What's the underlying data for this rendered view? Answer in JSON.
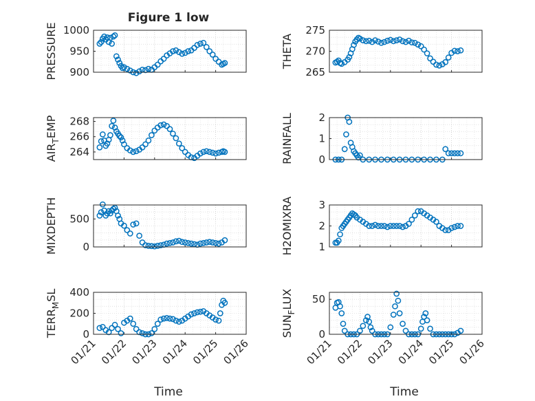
{
  "figure": {
    "title": "Figure 1 low",
    "marker_color": "#0072bd"
  },
  "chart_data": [
    {
      "type": "scatter",
      "panel": "PRESSURE",
      "ylabel": "PRESSURE",
      "ylim": [
        900,
        1000
      ],
      "yticks": [
        "1000",
        "950",
        "900"
      ],
      "xlim": [
        0,
        5
      ],
      "xticks": [
        "01/21",
        "01/22",
        "01/23",
        "01/24",
        "01/25",
        "01/26"
      ],
      "x": [
        0.2,
        0.25,
        0.3,
        0.35,
        0.4,
        0.45,
        0.5,
        0.55,
        0.6,
        0.65,
        0.7,
        0.75,
        0.8,
        0.85,
        0.9,
        0.95,
        1.0,
        1.1,
        1.2,
        1.3,
        1.4,
        1.5,
        1.6,
        1.7,
        1.8,
        1.9,
        2.0,
        2.1,
        2.2,
        2.3,
        2.4,
        2.5,
        2.6,
        2.7,
        2.8,
        2.9,
        3.0,
        3.1,
        3.2,
        3.3,
        3.4,
        3.5,
        3.6,
        3.7,
        3.8,
        3.9,
        4.0,
        4.1,
        4.2,
        4.25,
        4.3
      ],
      "y": [
        968,
        972,
        980,
        985,
        978,
        983,
        972,
        982,
        968,
        985,
        988,
        938,
        930,
        922,
        915,
        910,
        912,
        908,
        904,
        900,
        898,
        902,
        906,
        905,
        908,
        906,
        912,
        918,
        926,
        932,
        940,
        945,
        950,
        952,
        948,
        944,
        946,
        950,
        952,
        958,
        965,
        968,
        970,
        960,
        950,
        942,
        932,
        925,
        918,
        920,
        922
      ]
    },
    {
      "type": "scatter",
      "panel": "THETA",
      "ylabel": "THETA",
      "ylim": [
        265,
        275
      ],
      "yticks": [
        "275",
        "270",
        "265"
      ],
      "xlim": [
        0,
        5
      ],
      "xticks": [
        "01/21",
        "01/22",
        "01/23",
        "01/24",
        "01/25",
        "01/26"
      ],
      "x": [
        0.2,
        0.25,
        0.3,
        0.35,
        0.4,
        0.5,
        0.6,
        0.65,
        0.7,
        0.75,
        0.8,
        0.85,
        0.9,
        0.95,
        1.0,
        1.1,
        1.2,
        1.3,
        1.4,
        1.5,
        1.6,
        1.7,
        1.8,
        1.9,
        2.0,
        2.1,
        2.2,
        2.3,
        2.4,
        2.5,
        2.6,
        2.7,
        2.8,
        2.9,
        3.0,
        3.1,
        3.2,
        3.3,
        3.4,
        3.5,
        3.6,
        3.7,
        3.8,
        3.9,
        4.0,
        4.1,
        4.2,
        4.3
      ],
      "y": [
        267.3,
        267.5,
        267.8,
        267.2,
        267.0,
        267.4,
        268.0,
        268.6,
        269.5,
        270.5,
        271.5,
        272.3,
        272.8,
        273.2,
        273.0,
        272.6,
        272.4,
        272.5,
        272.2,
        272.6,
        272.3,
        272.0,
        272.2,
        272.5,
        272.7,
        272.4,
        272.6,
        272.8,
        272.4,
        272.2,
        272.5,
        272.1,
        272.0,
        271.6,
        271.2,
        270.4,
        269.5,
        268.3,
        267.5,
        266.8,
        266.6,
        266.9,
        267.4,
        268.5,
        269.6,
        270.1,
        270.0,
        270.2
      ]
    },
    {
      "type": "scatter",
      "panel": "AIR_TEMP",
      "ylabel": "AIR",
      "ylabel_sub": "T",
      "ylabel_rest": "EMP",
      "ylim": [
        263,
        268.5
      ],
      "yticks": [
        "268",
        "266",
        "264"
      ],
      "xlim": [
        0,
        5
      ],
      "xticks": [
        "01/21",
        "01/22",
        "01/23",
        "01/24",
        "01/25",
        "01/26"
      ],
      "x": [
        0.2,
        0.25,
        0.3,
        0.35,
        0.4,
        0.45,
        0.5,
        0.55,
        0.6,
        0.65,
        0.7,
        0.75,
        0.8,
        0.85,
        0.9,
        0.95,
        1.0,
        1.1,
        1.2,
        1.3,
        1.4,
        1.5,
        1.6,
        1.7,
        1.8,
        1.9,
        2.0,
        2.1,
        2.2,
        2.3,
        2.4,
        2.5,
        2.6,
        2.7,
        2.8,
        2.9,
        3.0,
        3.1,
        3.2,
        3.3,
        3.4,
        3.5,
        3.6,
        3.7,
        3.8,
        3.9,
        4.0,
        4.1,
        4.2,
        4.25,
        4.3
      ],
      "y": [
        264.6,
        265.4,
        266.3,
        265.5,
        264.8,
        265.1,
        265.6,
        266.2,
        267.4,
        268.1,
        267.2,
        266.7,
        266.4,
        266.1,
        265.9,
        265.5,
        265.0,
        264.5,
        264.2,
        264.0,
        264.1,
        264.3,
        264.6,
        265.0,
        265.5,
        266.2,
        266.8,
        267.2,
        267.5,
        267.6,
        267.4,
        267.0,
        266.4,
        265.8,
        265.1,
        264.5,
        264.0,
        263.6,
        263.3,
        263.2,
        263.5,
        263.8,
        264.0,
        264.1,
        264.0,
        263.9,
        263.8,
        263.9,
        264.0,
        264.1,
        264.0
      ]
    },
    {
      "type": "scatter",
      "panel": "RAINFALL",
      "ylabel": "RAINFALL",
      "ylim": [
        0,
        2
      ],
      "yticks": [
        "2",
        "1",
        "0"
      ],
      "xlim": [
        0,
        5
      ],
      "xticks": [
        "01/21",
        "01/22",
        "01/23",
        "01/24",
        "01/25",
        "01/26"
      ],
      "x": [
        0.2,
        0.3,
        0.4,
        0.5,
        0.55,
        0.6,
        0.65,
        0.7,
        0.75,
        0.8,
        0.85,
        0.9,
        0.95,
        1.0,
        1.1,
        1.3,
        1.5,
        1.7,
        1.9,
        2.1,
        2.3,
        2.5,
        2.7,
        2.9,
        3.1,
        3.3,
        3.5,
        3.7,
        3.8,
        3.9,
        4.0,
        4.1,
        4.2,
        4.3
      ],
      "y": [
        0,
        0,
        0,
        0.5,
        1.2,
        2.0,
        1.8,
        0.8,
        0.6,
        0.4,
        0.3,
        0.2,
        0.1,
        0.2,
        0,
        0,
        0,
        0,
        0,
        0,
        0,
        0,
        0,
        0,
        0,
        0,
        0,
        0,
        0.5,
        0.3,
        0.3,
        0.3,
        0.3,
        0.3
      ]
    },
    {
      "type": "scatter",
      "panel": "MIXDEPTH",
      "ylabel": "MIXDEPTH",
      "ylim": [
        0,
        750
      ],
      "yticks": [
        "500",
        "0"
      ],
      "xlim": [
        0,
        5
      ],
      "xticks": [
        "01/21",
        "01/22",
        "01/23",
        "01/24",
        "01/25",
        "01/26"
      ],
      "x": [
        0.2,
        0.25,
        0.3,
        0.35,
        0.4,
        0.45,
        0.5,
        0.55,
        0.6,
        0.65,
        0.7,
        0.75,
        0.8,
        0.85,
        0.9,
        1.0,
        1.1,
        1.2,
        1.3,
        1.4,
        1.5,
        1.6,
        1.7,
        1.8,
        1.9,
        2.0,
        2.1,
        2.2,
        2.3,
        2.4,
        2.5,
        2.6,
        2.7,
        2.8,
        2.9,
        3.0,
        3.1,
        3.2,
        3.3,
        3.4,
        3.5,
        3.6,
        3.7,
        3.8,
        3.9,
        4.0,
        4.1,
        4.2,
        4.3
      ],
      "y": [
        560,
        620,
        760,
        650,
        560,
        600,
        640,
        600,
        650,
        680,
        700,
        640,
        560,
        500,
        420,
        380,
        300,
        240,
        400,
        420,
        200,
        80,
        30,
        20,
        15,
        10,
        20,
        30,
        40,
        60,
        70,
        80,
        100,
        110,
        90,
        80,
        70,
        60,
        50,
        40,
        60,
        70,
        80,
        90,
        80,
        70,
        60,
        80,
        120
      ]
    },
    {
      "type": "scatter",
      "panel": "H2OMIXRA",
      "ylabel": "H2OMIXRA",
      "ylim": [
        1,
        3
      ],
      "yticks": [
        "3",
        "2",
        "1"
      ],
      "xlim": [
        0,
        5
      ],
      "xticks": [
        "01/21",
        "01/22",
        "01/23",
        "01/24",
        "01/25",
        "01/26"
      ],
      "x": [
        0.2,
        0.25,
        0.3,
        0.35,
        0.4,
        0.45,
        0.5,
        0.55,
        0.6,
        0.65,
        0.7,
        0.75,
        0.8,
        0.85,
        0.9,
        1.0,
        1.1,
        1.2,
        1.3,
        1.4,
        1.5,
        1.6,
        1.7,
        1.8,
        1.9,
        2.0,
        2.1,
        2.2,
        2.3,
        2.4,
        2.5,
        2.6,
        2.7,
        2.8,
        2.9,
        3.0,
        3.1,
        3.2,
        3.3,
        3.4,
        3.5,
        3.6,
        3.7,
        3.8,
        3.9,
        4.0,
        4.1,
        4.2,
        4.3
      ],
      "y": [
        1.2,
        1.2,
        1.3,
        1.6,
        1.9,
        2.0,
        2.1,
        2.2,
        2.3,
        2.4,
        2.5,
        2.6,
        2.55,
        2.5,
        2.4,
        2.3,
        2.2,
        2.1,
        2.0,
        2.0,
        2.05,
        2.0,
        2.0,
        2.0,
        1.95,
        2.0,
        2.0,
        2.0,
        2.0,
        1.95,
        2.0,
        2.1,
        2.3,
        2.5,
        2.7,
        2.7,
        2.6,
        2.5,
        2.4,
        2.3,
        2.2,
        2.0,
        1.9,
        1.8,
        1.8,
        1.9,
        1.95,
        2.0,
        2.0
      ]
    },
    {
      "type": "scatter",
      "panel": "TERR_MSL",
      "ylabel": "TERR",
      "ylabel_sub": "M",
      "ylabel_rest": "SL",
      "ylim": [
        0,
        400
      ],
      "yticks": [
        "400",
        "200",
        "0"
      ],
      "xlim": [
        0,
        5
      ],
      "xticks": [
        "01/21",
        "01/22",
        "01/23",
        "01/24",
        "01/25",
        "01/26"
      ],
      "x": [
        0.2,
        0.3,
        0.4,
        0.5,
        0.6,
        0.7,
        0.8,
        0.9,
        1.0,
        1.1,
        1.2,
        1.3,
        1.4,
        1.5,
        1.6,
        1.7,
        1.8,
        1.9,
        2.0,
        2.1,
        2.2,
        2.3,
        2.4,
        2.5,
        2.6,
        2.7,
        2.8,
        2.9,
        3.0,
        3.1,
        3.2,
        3.3,
        3.4,
        3.5,
        3.6,
        3.7,
        3.8,
        3.9,
        4.0,
        4.1,
        4.15,
        4.2,
        4.25,
        4.3
      ],
      "y": [
        60,
        70,
        40,
        20,
        60,
        90,
        50,
        10,
        110,
        130,
        150,
        100,
        50,
        20,
        10,
        0,
        0,
        10,
        50,
        100,
        140,
        150,
        155,
        150,
        145,
        130,
        120,
        130,
        150,
        170,
        190,
        200,
        210,
        215,
        220,
        200,
        180,
        160,
        140,
        130,
        200,
        280,
        320,
        300
      ]
    },
    {
      "type": "scatter",
      "panel": "SUN_FLUX",
      "ylabel": "SUN",
      "ylabel_sub": "F",
      "ylabel_rest": "LUX",
      "ylim": [
        0,
        60
      ],
      "yticks": [
        "50",
        "0"
      ],
      "xlim": [
        0,
        5
      ],
      "xticks": [
        "01/21",
        "01/22",
        "01/23",
        "01/24",
        "01/25",
        "01/26"
      ],
      "x": [
        0.2,
        0.25,
        0.3,
        0.35,
        0.4,
        0.45,
        0.5,
        0.6,
        0.7,
        0.8,
        0.9,
        1.0,
        1.1,
        1.2,
        1.25,
        1.3,
        1.35,
        1.4,
        1.5,
        1.6,
        1.7,
        1.8,
        1.9,
        2.0,
        2.1,
        2.15,
        2.2,
        2.25,
        2.3,
        2.4,
        2.5,
        2.6,
        2.7,
        2.8,
        2.9,
        3.0,
        3.05,
        3.1,
        3.15,
        3.2,
        3.3,
        3.4,
        3.5,
        3.6,
        3.7,
        3.8,
        3.9,
        4.0,
        4.1,
        4.2,
        4.3
      ],
      "y": [
        38,
        45,
        46,
        40,
        30,
        15,
        5,
        0,
        0,
        0,
        0,
        5,
        12,
        20,
        25,
        18,
        10,
        5,
        0,
        0,
        0,
        0,
        0,
        10,
        28,
        40,
        58,
        48,
        30,
        15,
        5,
        0,
        0,
        0,
        0,
        8,
        18,
        25,
        30,
        20,
        8,
        0,
        0,
        0,
        0,
        0,
        0,
        0,
        0,
        2,
        5
      ]
    }
  ],
  "xlabel": "Time"
}
